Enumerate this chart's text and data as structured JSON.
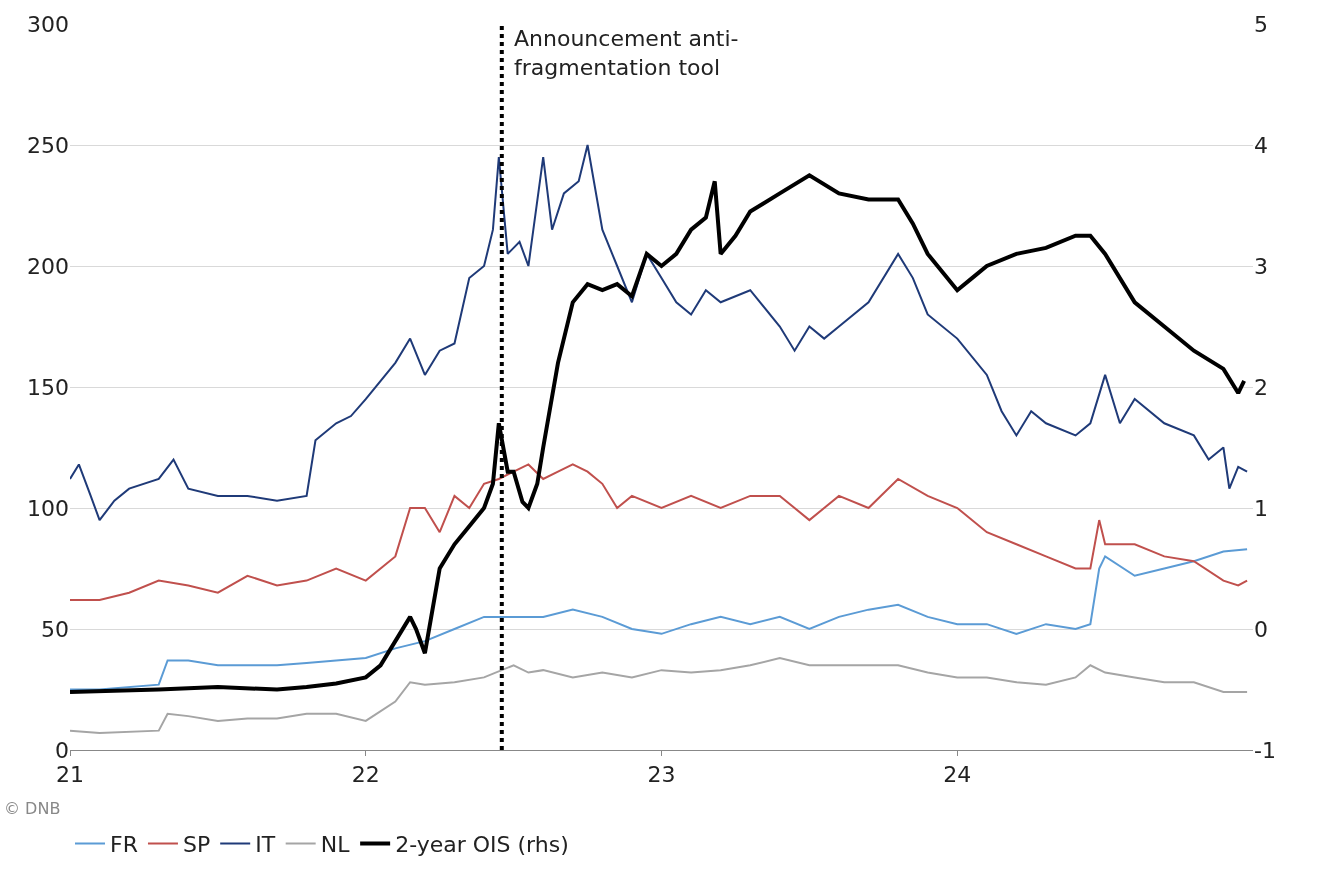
{
  "chart_data": {
    "type": "line",
    "xlim": [
      21,
      25
    ],
    "xticks": [
      21,
      22,
      23,
      24
    ],
    "ylim": [
      0,
      300
    ],
    "yticks": [
      0,
      50,
      100,
      150,
      200,
      250,
      300
    ],
    "y2lim": [
      -1,
      5
    ],
    "y2ticks": [
      -1,
      0,
      1,
      2,
      3,
      4,
      5
    ],
    "grid": "y",
    "legend": "bottom",
    "marker": "none",
    "line_style": "solid",
    "series": [
      {
        "name": "FR",
        "color": "#5b9bd5",
        "x": [
          21.0,
          21.1,
          21.3,
          21.33,
          21.4,
          21.5,
          21.6,
          21.7,
          21.8,
          21.9,
          22.0,
          22.1,
          22.2,
          22.3,
          22.4,
          22.5,
          22.6,
          22.7,
          22.8,
          22.9,
          23.0,
          23.1,
          23.2,
          23.3,
          23.4,
          23.5,
          23.6,
          23.7,
          23.8,
          23.9,
          24.0,
          24.1,
          24.2,
          24.3,
          24.4,
          24.45,
          24.48,
          24.5,
          24.6,
          24.7,
          24.8,
          24.9,
          24.98
        ],
        "values": [
          25,
          25,
          27,
          37,
          37,
          35,
          35,
          35,
          36,
          37,
          38,
          42,
          45,
          50,
          55,
          55,
          55,
          58,
          55,
          50,
          48,
          52,
          55,
          52,
          55,
          50,
          55,
          58,
          60,
          55,
          52,
          52,
          48,
          52,
          50,
          52,
          75,
          80,
          72,
          75,
          78,
          82,
          83
        ]
      },
      {
        "name": "SP",
        "color": "#c0504d",
        "x": [
          21.0,
          21.1,
          21.2,
          21.3,
          21.4,
          21.5,
          21.6,
          21.7,
          21.8,
          21.9,
          22.0,
          22.1,
          22.15,
          22.2,
          22.25,
          22.3,
          22.35,
          22.4,
          22.45,
          22.5,
          22.55,
          22.6,
          22.65,
          22.7,
          22.75,
          22.8,
          22.85,
          22.9,
          23.0,
          23.1,
          23.2,
          23.3,
          23.4,
          23.5,
          23.6,
          23.7,
          23.8,
          23.9,
          24.0,
          24.1,
          24.2,
          24.3,
          24.4,
          24.45,
          24.48,
          24.5,
          24.6,
          24.7,
          24.8,
          24.9,
          24.95,
          24.98
        ],
        "values": [
          62,
          62,
          65,
          70,
          68,
          65,
          72,
          68,
          70,
          75,
          70,
          80,
          100,
          100,
          90,
          105,
          100,
          110,
          112,
          115,
          118,
          112,
          115,
          118,
          115,
          110,
          100,
          105,
          100,
          105,
          100,
          105,
          105,
          95,
          105,
          100,
          112,
          105,
          100,
          90,
          85,
          80,
          75,
          75,
          95,
          85,
          85,
          80,
          78,
          70,
          68,
          70
        ]
      },
      {
        "name": "IT",
        "color": "#1f3a78",
        "x": [
          21.0,
          21.03,
          21.07,
          21.1,
          21.15,
          21.2,
          21.3,
          21.35,
          21.4,
          21.5,
          21.6,
          21.7,
          21.8,
          21.83,
          21.9,
          21.95,
          22.0,
          22.1,
          22.15,
          22.2,
          22.25,
          22.3,
          22.35,
          22.4,
          22.43,
          22.45,
          22.48,
          22.52,
          22.55,
          22.6,
          22.63,
          22.67,
          22.72,
          22.75,
          22.8,
          22.85,
          22.9,
          22.95,
          23.0,
          23.05,
          23.1,
          23.15,
          23.2,
          23.3,
          23.4,
          23.45,
          23.5,
          23.55,
          23.6,
          23.7,
          23.8,
          23.85,
          23.9,
          24.0,
          24.1,
          24.15,
          24.2,
          24.25,
          24.3,
          24.4,
          24.45,
          24.5,
          24.55,
          24.6,
          24.7,
          24.8,
          24.85,
          24.9,
          24.92,
          24.95,
          24.98
        ],
        "values": [
          112,
          118,
          105,
          95,
          103,
          108,
          112,
          120,
          108,
          105,
          105,
          103,
          105,
          128,
          135,
          138,
          145,
          160,
          170,
          155,
          165,
          168,
          195,
          200,
          215,
          245,
          205,
          210,
          200,
          245,
          215,
          230,
          235,
          250,
          215,
          200,
          185,
          205,
          195,
          185,
          180,
          190,
          185,
          190,
          175,
          165,
          175,
          170,
          175,
          185,
          205,
          195,
          180,
          170,
          155,
          140,
          130,
          140,
          135,
          130,
          135,
          155,
          135,
          145,
          135,
          130,
          120,
          125,
          108,
          117,
          115
        ]
      },
      {
        "name": "NL",
        "color": "#a5a5a5",
        "x": [
          21.0,
          21.1,
          21.3,
          21.33,
          21.4,
          21.5,
          21.6,
          21.7,
          21.8,
          21.9,
          22.0,
          22.1,
          22.15,
          22.2,
          22.3,
          22.4,
          22.5,
          22.55,
          22.6,
          22.7,
          22.8,
          22.9,
          23.0,
          23.1,
          23.2,
          23.3,
          23.4,
          23.5,
          23.6,
          23.7,
          23.8,
          23.9,
          24.0,
          24.1,
          24.2,
          24.3,
          24.4,
          24.45,
          24.5,
          24.6,
          24.7,
          24.8,
          24.9,
          24.98
        ],
        "values": [
          8,
          7,
          8,
          15,
          14,
          12,
          13,
          13,
          15,
          15,
          12,
          20,
          28,
          27,
          28,
          30,
          35,
          32,
          33,
          30,
          32,
          30,
          33,
          32,
          33,
          35,
          38,
          35,
          35,
          35,
          35,
          32,
          30,
          30,
          28,
          27,
          30,
          35,
          32,
          30,
          28,
          28,
          24,
          24
        ]
      },
      {
        "name": "2-year OIS (rhs)",
        "color": "#000000",
        "axis": "y2",
        "x": [
          21.0,
          21.3,
          21.5,
          21.7,
          21.8,
          21.9,
          22.0,
          22.05,
          22.1,
          22.15,
          22.17,
          22.2,
          22.25,
          22.3,
          22.35,
          22.4,
          22.43,
          22.45,
          22.48,
          22.5,
          22.53,
          22.55,
          22.58,
          22.6,
          22.65,
          22.7,
          22.75,
          22.8,
          22.85,
          22.9,
          22.95,
          23.0,
          23.05,
          23.1,
          23.15,
          23.18,
          23.2,
          23.25,
          23.3,
          23.4,
          23.5,
          23.6,
          23.7,
          23.8,
          23.85,
          23.9,
          24.0,
          24.05,
          24.1,
          24.2,
          24.3,
          24.4,
          24.45,
          24.5,
          24.6,
          24.7,
          24.8,
          24.9,
          24.95,
          24.97
        ],
        "values": [
          -0.52,
          -0.5,
          -0.48,
          -0.5,
          -0.48,
          -0.45,
          -0.4,
          -0.3,
          -0.1,
          0.1,
          0.0,
          -0.2,
          0.5,
          0.7,
          0.85,
          1.0,
          1.2,
          1.7,
          1.3,
          1.3,
          1.05,
          1.0,
          1.2,
          1.5,
          2.2,
          2.7,
          2.85,
          2.8,
          2.85,
          2.75,
          3.1,
          3.0,
          3.1,
          3.3,
          3.4,
          3.7,
          3.1,
          3.25,
          3.45,
          3.6,
          3.75,
          3.6,
          3.55,
          3.55,
          3.35,
          3.1,
          2.8,
          2.9,
          3.0,
          3.1,
          3.15,
          3.25,
          3.25,
          3.1,
          2.7,
          2.5,
          2.3,
          2.15,
          1.95,
          2.05
        ]
      }
    ],
    "ref_lines": [
      {
        "axis": "x",
        "value": 22.46,
        "label": "Announcement anti-fragmentation tool",
        "color": "#000000",
        "line_style": "dotted"
      }
    ],
    "annotations": [
      "© DNB"
    ]
  }
}
